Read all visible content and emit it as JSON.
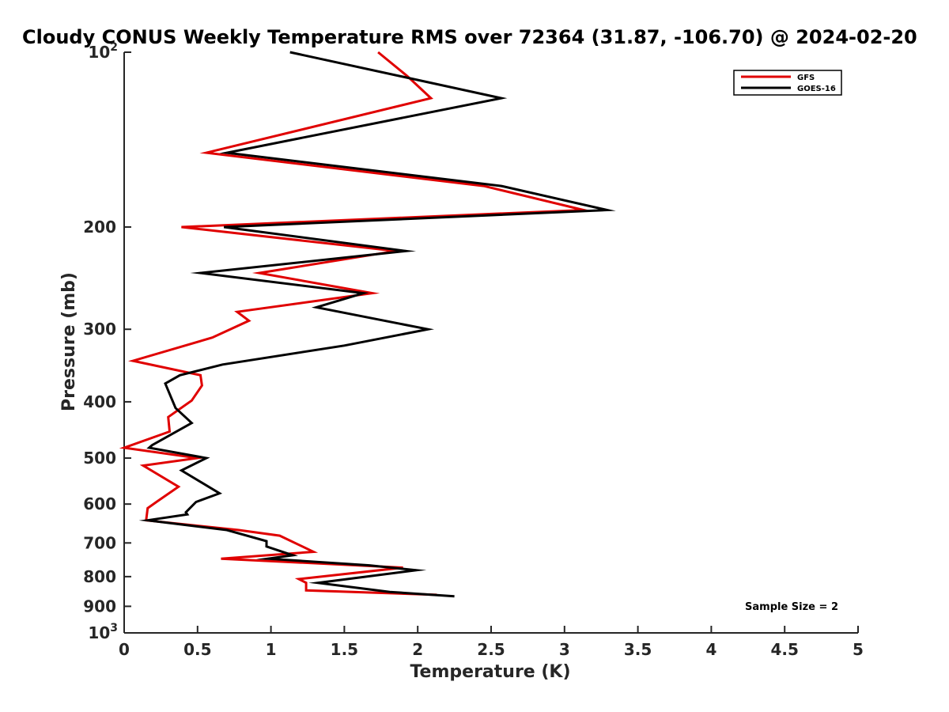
{
  "chart_data": {
    "type": "line",
    "title": "Cloudy CONUS Weekly Temperature RMS over 72364 (31.87, -106.70) @ 2024-02-20",
    "xlabel": "Temperature (K)",
    "ylabel": "Pressure (mb)",
    "xlim": [
      0,
      5
    ],
    "ylim": [
      100,
      1000
    ],
    "yscale": "log",
    "y_reversed": true,
    "xticks": [
      "0",
      "0.5",
      "1",
      "1.5",
      "2",
      "2.5",
      "3",
      "3.5",
      "4",
      "4.5",
      "5"
    ],
    "yticks": [
      {
        "value": 100,
        "label": "10",
        "sup": "2"
      },
      {
        "value": 200,
        "label": "200"
      },
      {
        "value": 300,
        "label": "300"
      },
      {
        "value": 400,
        "label": "400"
      },
      {
        "value": 500,
        "label": "500"
      },
      {
        "value": 600,
        "label": "600"
      },
      {
        "value": 700,
        "label": "700"
      },
      {
        "value": 800,
        "label": "800"
      },
      {
        "value": 900,
        "label": "900"
      },
      {
        "value": 1000,
        "label": "10",
        "sup": "3"
      }
    ],
    "legend_position": "top-right",
    "grid": false,
    "annotation": "Sample Size = 2",
    "series": [
      {
        "name": "GFS",
        "color": "#e00000",
        "points": [
          [
            1.73,
            100
          ],
          [
            1.93,
            110
          ],
          [
            2.09,
            120
          ],
          [
            0.56,
            149
          ],
          [
            2.45,
            170
          ],
          [
            3.13,
            187
          ],
          [
            0.39,
            200
          ],
          [
            1.85,
            220
          ],
          [
            0.92,
            240
          ],
          [
            1.69,
            260
          ],
          [
            0.77,
            280
          ],
          [
            0.85,
            290
          ],
          [
            0.6,
            310
          ],
          [
            0.06,
            340
          ],
          [
            0.52,
            360
          ],
          [
            0.53,
            375
          ],
          [
            0.46,
            398
          ],
          [
            0.3,
            425
          ],
          [
            0.31,
            450
          ],
          [
            0.0,
            480
          ],
          [
            0.5,
            500
          ],
          [
            0.13,
            515
          ],
          [
            0.37,
            560
          ],
          [
            0.22,
            595
          ],
          [
            0.16,
            610
          ],
          [
            0.15,
            640
          ],
          [
            0.78,
            665
          ],
          [
            1.06,
            680
          ],
          [
            1.29,
            725
          ],
          [
            0.66,
            745
          ],
          [
            1.9,
            772
          ],
          [
            1.19,
            808
          ],
          [
            1.24,
            820
          ],
          [
            1.24,
            845
          ],
          [
            2.13,
            860
          ]
        ]
      },
      {
        "name": "GOES-16",
        "color": "#000000",
        "points": [
          [
            1.13,
            100
          ],
          [
            2.57,
            120
          ],
          [
            0.7,
            149
          ],
          [
            2.57,
            170
          ],
          [
            3.29,
            187
          ],
          [
            0.68,
            200
          ],
          [
            1.92,
            220
          ],
          [
            0.52,
            240
          ],
          [
            1.63,
            260
          ],
          [
            1.31,
            275
          ],
          [
            2.07,
            300
          ],
          [
            1.5,
            320
          ],
          [
            0.67,
            345
          ],
          [
            0.38,
            360
          ],
          [
            0.28,
            372
          ],
          [
            0.35,
            410
          ],
          [
            0.46,
            435
          ],
          [
            0.19,
            475
          ],
          [
            0.17,
            480
          ],
          [
            0.56,
            500
          ],
          [
            0.39,
            525
          ],
          [
            0.65,
            575
          ],
          [
            0.49,
            595
          ],
          [
            0.42,
            620
          ],
          [
            0.43,
            625
          ],
          [
            0.16,
            640
          ],
          [
            0.7,
            665
          ],
          [
            0.97,
            695
          ],
          [
            0.97,
            710
          ],
          [
            1.15,
            735
          ],
          [
            0.98,
            745
          ],
          [
            1.67,
            765
          ],
          [
            1.99,
            780
          ],
          [
            1.32,
            820
          ],
          [
            1.81,
            850
          ],
          [
            2.25,
            865
          ]
        ]
      }
    ]
  }
}
